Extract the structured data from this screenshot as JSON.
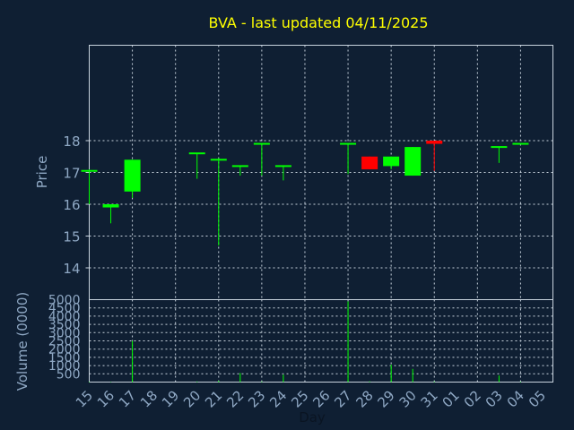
{
  "title": "BVA - last updated 04/11/2025",
  "colors": {
    "background": "#0f1f33",
    "title": "#ffff00",
    "axis_text": "#8fa8c4",
    "grid": "#c8d3de",
    "up": "#00ff00",
    "down": "#ff0000",
    "volume": "#00ff00"
  },
  "chart_data": [
    {
      "type": "candlestick",
      "ylabel": "Price",
      "ylim": [
        13.0,
        21.0
      ],
      "yticks": [
        14,
        15,
        16,
        17,
        18
      ],
      "x_tick_labels": [
        "15",
        "16",
        "17",
        "18",
        "19",
        "20",
        "21",
        "22",
        "23",
        "24",
        "25",
        "26",
        "27",
        "28",
        "29",
        "30",
        "31",
        "01",
        "02",
        "03",
        "04",
        "05"
      ],
      "grid": true,
      "candles": [
        {
          "day": "15",
          "open": 17.05,
          "high": 17.1,
          "low": 16.0,
          "close": 17.05
        },
        {
          "day": "16",
          "open": 15.9,
          "high": 16.0,
          "low": 15.4,
          "close": 16.0
        },
        {
          "day": "17",
          "open": 16.4,
          "high": 17.4,
          "low": 16.2,
          "close": 17.4
        },
        {
          "day": "20",
          "open": 17.6,
          "high": 17.6,
          "low": 16.8,
          "close": 17.6
        },
        {
          "day": "21",
          "open": 17.4,
          "high": 17.45,
          "low": 14.7,
          "close": 17.4
        },
        {
          "day": "22",
          "open": 17.15,
          "high": 17.2,
          "low": 16.9,
          "close": 17.2
        },
        {
          "day": "23",
          "open": 17.9,
          "high": 17.9,
          "low": 16.9,
          "close": 17.9
        },
        {
          "day": "24",
          "open": 17.15,
          "high": 17.2,
          "low": 16.75,
          "close": 17.2
        },
        {
          "day": "27",
          "open": 17.9,
          "high": 17.9,
          "low": 16.95,
          "close": 17.9
        },
        {
          "day": "28",
          "open": 17.5,
          "high": 17.5,
          "low": 17.1,
          "close": 17.1
        },
        {
          "day": "29",
          "open": 17.2,
          "high": 17.5,
          "low": 17.1,
          "close": 17.5
        },
        {
          "day": "30",
          "open": 16.9,
          "high": 17.8,
          "low": 16.9,
          "close": 17.8
        },
        {
          "day": "31",
          "open": 18.0,
          "high": 18.0,
          "low": 17.05,
          "close": 17.9
        },
        {
          "day": "03",
          "open": 17.8,
          "high": 17.8,
          "low": 17.3,
          "close": 17.8
        },
        {
          "day": "04",
          "open": 17.9,
          "high": 17.9,
          "low": 17.9,
          "close": 17.9
        }
      ]
    },
    {
      "type": "bar",
      "ylabel": "Volume (0000)",
      "xlabel": "Day",
      "ylim": [
        0,
        5000
      ],
      "yticks": [
        500,
        1000,
        1500,
        2000,
        2500,
        3000,
        3500,
        4000,
        4500,
        5000
      ],
      "categories": [
        "15",
        "16",
        "17",
        "20",
        "21",
        "22",
        "23",
        "24",
        "27",
        "28",
        "29",
        "30",
        "31",
        "03",
        "04"
      ],
      "values": [
        30,
        20,
        2500,
        40,
        80,
        550,
        40,
        450,
        4900,
        50,
        1050,
        800,
        40,
        400,
        30
      ]
    }
  ]
}
